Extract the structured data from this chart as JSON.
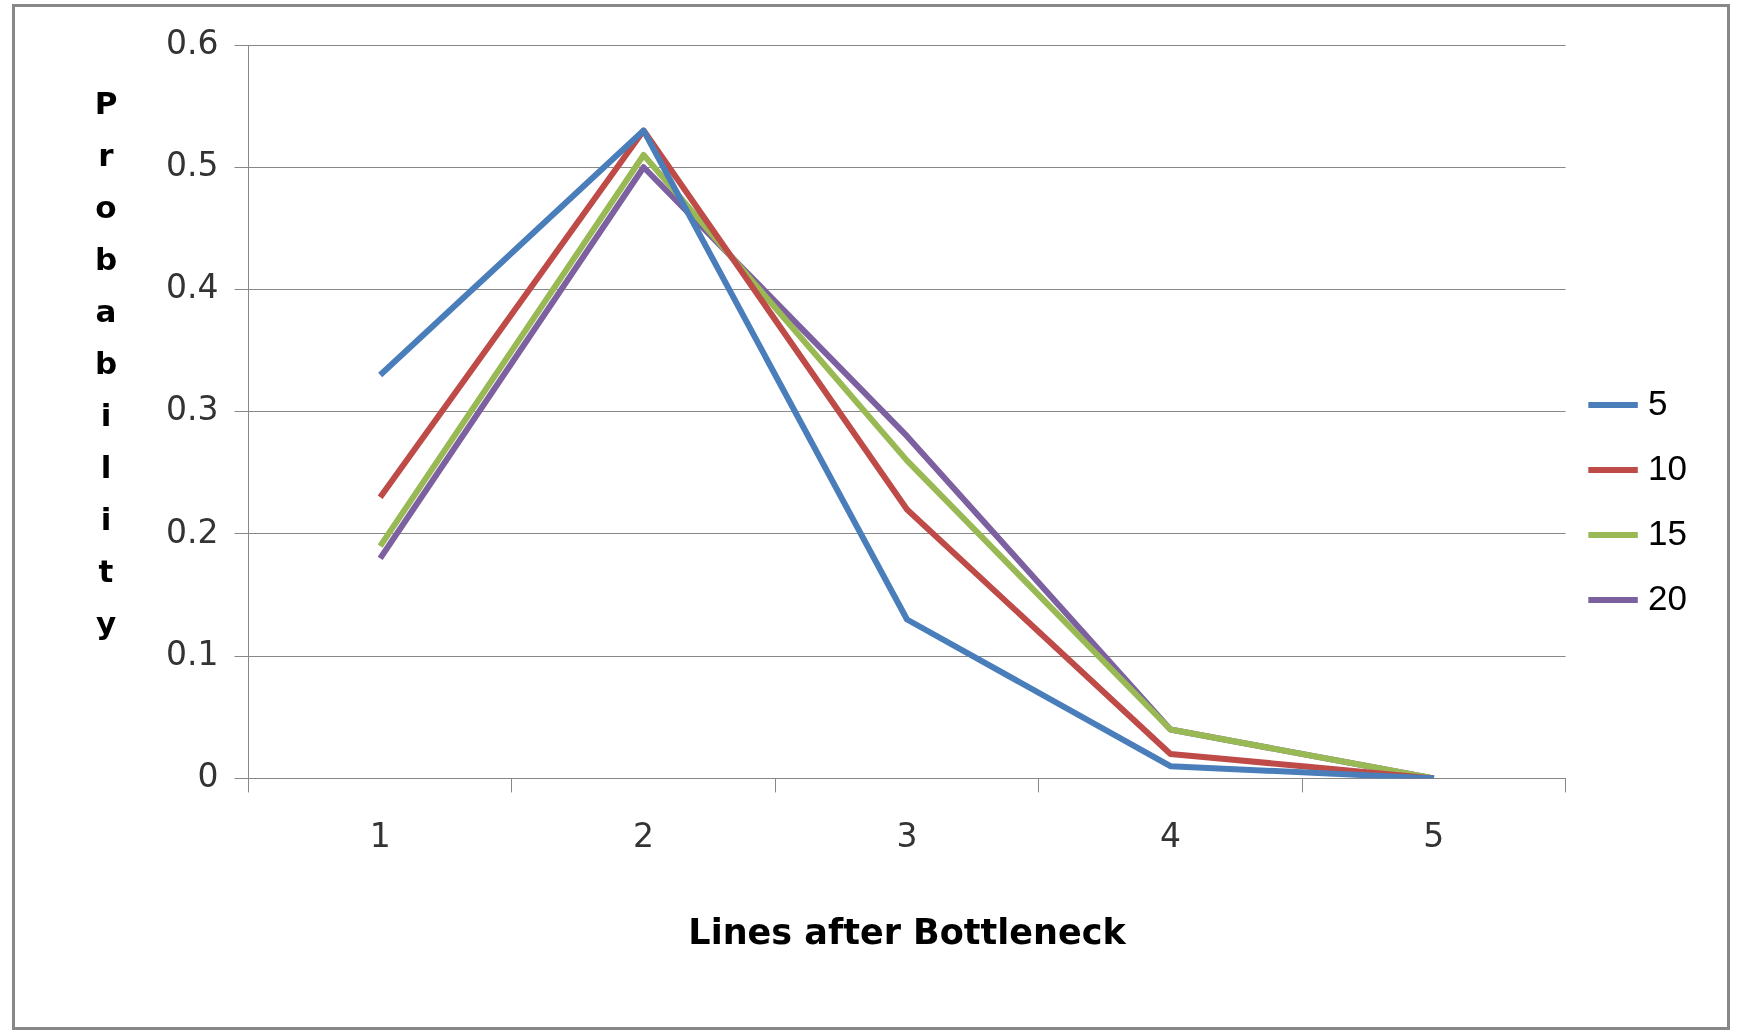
{
  "chart_data": {
    "type": "line",
    "xlabel": "Lines after Bottleneck",
    "ylabel": "Probability",
    "categories": [
      "1",
      "2",
      "3",
      "4",
      "5"
    ],
    "ylim": [
      0,
      0.6
    ],
    "yticks": [
      0,
      0.1,
      0.2,
      0.3,
      0.4,
      0.5,
      0.6
    ],
    "grid": "y",
    "legend": "right",
    "marker": "none",
    "series": [
      {
        "name": "5",
        "color": "#4a7ebb",
        "values": [
          0.33,
          0.53,
          0.13,
          0.01,
          0
        ]
      },
      {
        "name": "10",
        "color": "#be4b48",
        "values": [
          0.23,
          0.53,
          0.22,
          0.02,
          0
        ]
      },
      {
        "name": "15",
        "color": "#98b954",
        "values": [
          0.19,
          0.51,
          0.26,
          0.04,
          0
        ]
      },
      {
        "name": "20",
        "color": "#7d60a0",
        "values": [
          0.18,
          0.5,
          0.28,
          0.04,
          0
        ]
      }
    ]
  }
}
